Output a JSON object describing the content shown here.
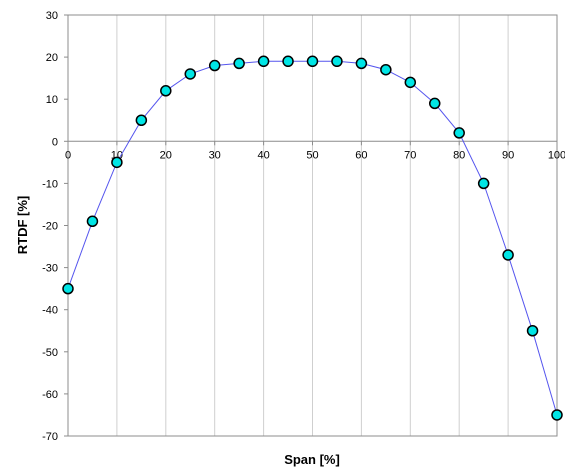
{
  "chart_data": {
    "type": "line",
    "xlabel": "Span [%]",
    "ylabel": "RTDF [%]",
    "xlim": [
      0,
      100
    ],
    "ylim": [
      -70,
      30
    ],
    "x_ticks": [
      0,
      10,
      20,
      30,
      40,
      50,
      60,
      70,
      80,
      90,
      100
    ],
    "y_ticks": [
      30,
      20,
      10,
      0,
      -10,
      -20,
      -30,
      -40,
      -50,
      -60,
      -70
    ],
    "grid": "vertical",
    "marker": "circle",
    "line_color": "#5555ee",
    "marker_fill": "#00e5e5",
    "marker_edge": "#000000",
    "series": [
      {
        "x": [
          0,
          5,
          10,
          15,
          20,
          25,
          30,
          35,
          40,
          45,
          50,
          55,
          60,
          65,
          70,
          75,
          80,
          85,
          90,
          95,
          100
        ],
        "values": [
          -35,
          -19,
          -5,
          5,
          12,
          16,
          18,
          18.5,
          19,
          19,
          19,
          19,
          18.5,
          17,
          14,
          9,
          2,
          -10,
          -27,
          -45,
          -65
        ]
      }
    ]
  }
}
